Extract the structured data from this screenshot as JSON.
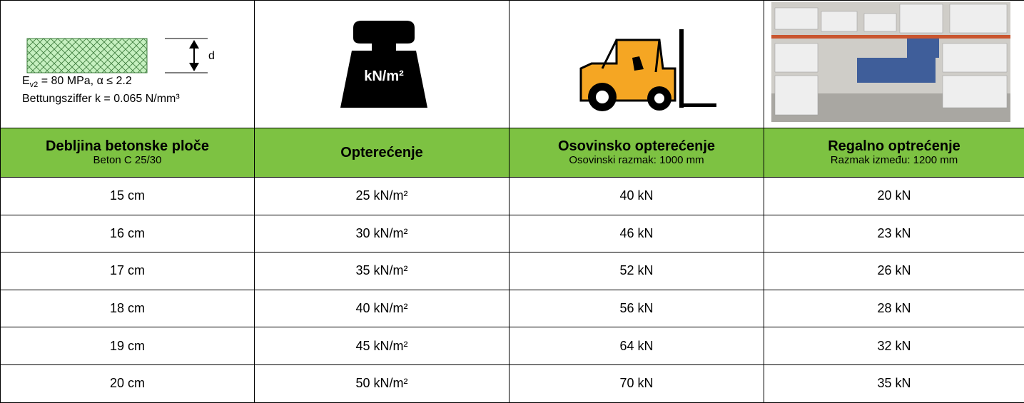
{
  "header_images": {
    "slab": {
      "thickness_label": "d",
      "ev2": {
        "symbol": "E",
        "subscript": "v2",
        "rest": " = 80 MPa, α ≤ 2.2"
      },
      "bedding": "Bettungsziffer k = 0.065 N/mm³"
    },
    "weight_label": "kN/m²"
  },
  "table": {
    "columns": [
      {
        "title": "Debljina betonske ploče",
        "subtitle": "Beton C 25/30"
      },
      {
        "title": "Opterećenje"
      },
      {
        "title": "Osovinsko opterećenje",
        "subtitle": "Osovinski razmak: 1000 mm"
      },
      {
        "title": "Regalno optrećenje",
        "subtitle": "Razmak između: 1200 mm"
      }
    ],
    "rows": [
      [
        "15 cm",
        "25 kN/m²",
        "40 kN",
        "20 kN"
      ],
      [
        "16 cm",
        "30 kN/m²",
        "46 kN",
        "23 kN"
      ],
      [
        "17 cm",
        "35 kN/m²",
        "52 kN",
        "26 kN"
      ],
      [
        "18 cm",
        "40 kN/m²",
        "56 kN",
        "28 kN"
      ],
      [
        "19 cm",
        "45 kN/m²",
        "64 kN",
        "32 kN"
      ],
      [
        "20 cm",
        "50 kN/m²",
        "70 kN",
        "35 kN"
      ]
    ]
  }
}
